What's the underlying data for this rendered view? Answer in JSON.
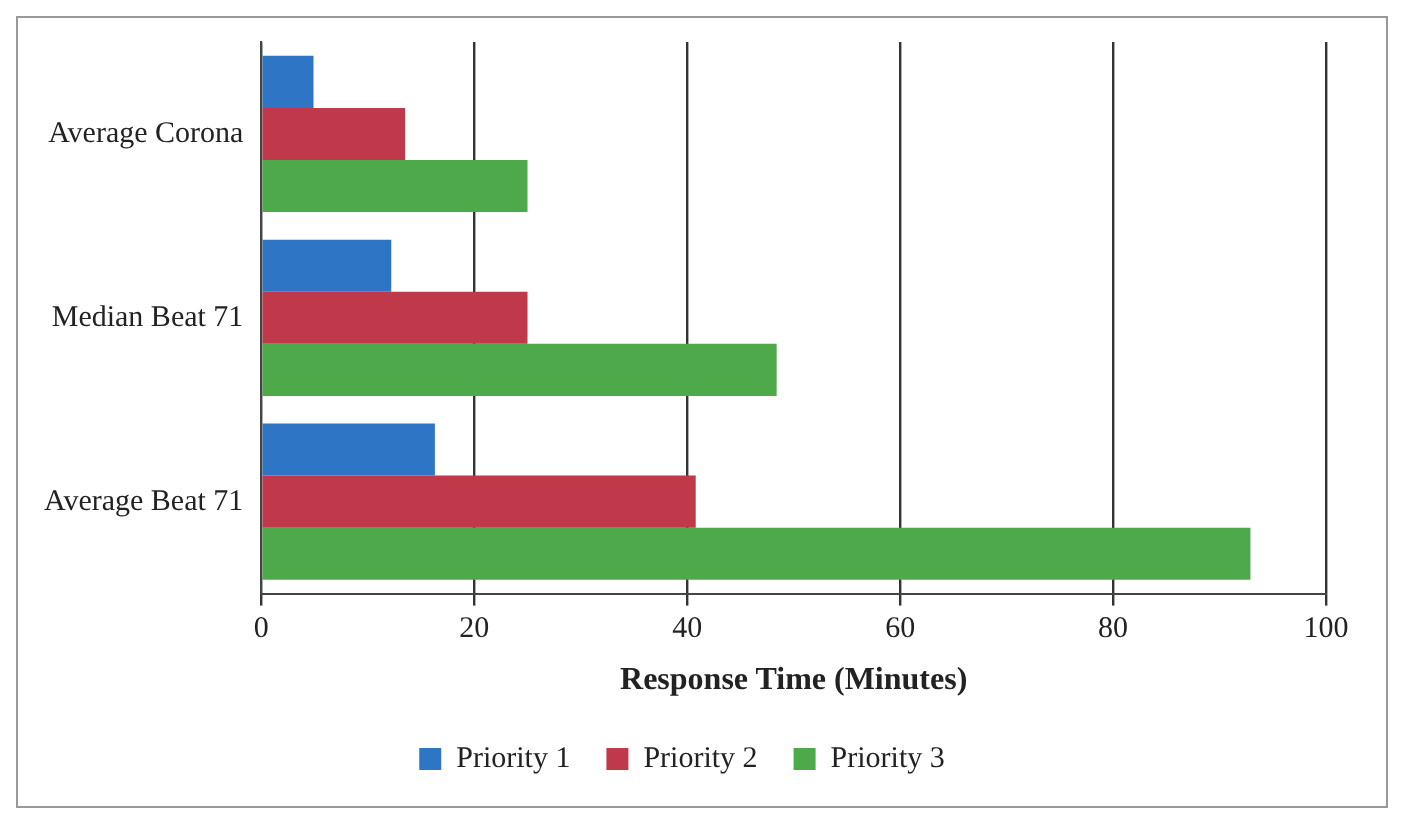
{
  "chart_data": {
    "type": "bar",
    "orientation": "horizontal",
    "xlabel": "Response Time (Minutes)",
    "categories": [
      "Average Corona",
      "Median Beat 71",
      "Average Beat 71"
    ],
    "series": [
      {
        "name": "Priority 1",
        "color": "#2e75c6",
        "values": [
          4.9,
          12.2,
          16.3
        ]
      },
      {
        "name": "Priority 2",
        "color": "#c0394b",
        "values": [
          13.5,
          25,
          40.8
        ]
      },
      {
        "name": "Priority 3",
        "color": "#4ea94b",
        "values": [
          25,
          48.4,
          92.9
        ]
      }
    ],
    "xlim": [
      0,
      100
    ],
    "xticks": [
      0,
      20,
      40,
      60,
      80,
      100
    ],
    "grid": "x",
    "legend": "bottom"
  }
}
